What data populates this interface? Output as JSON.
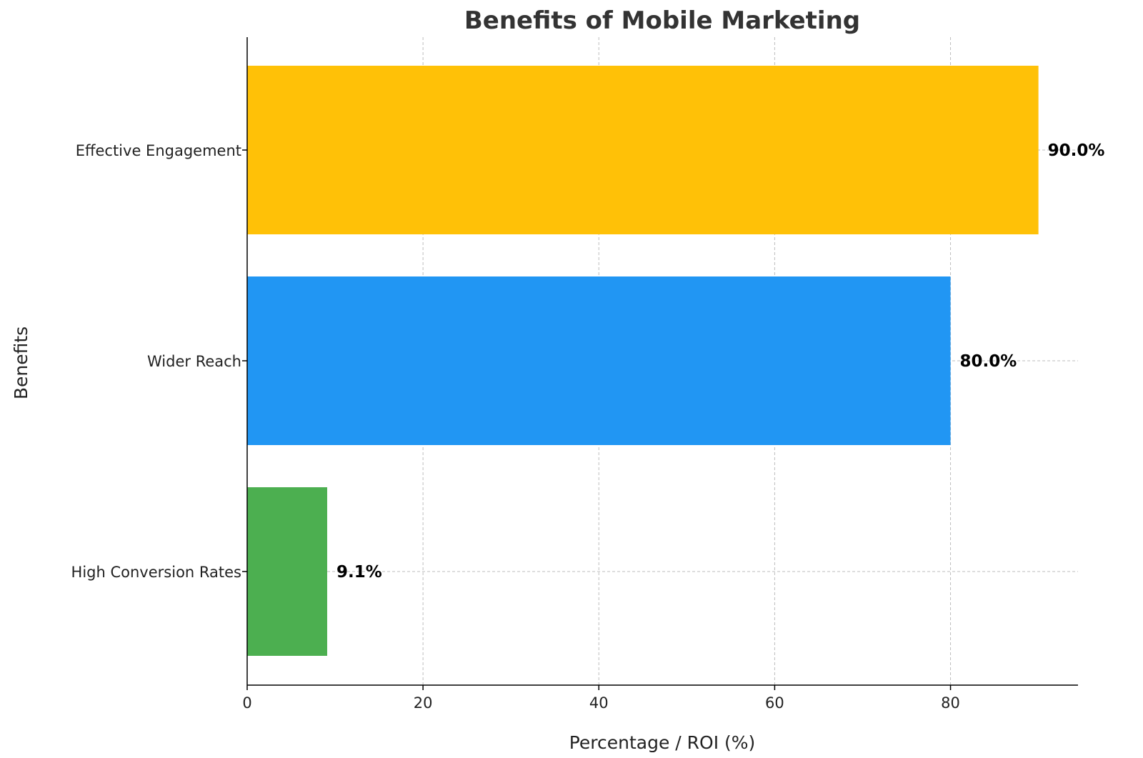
{
  "chart_data": {
    "type": "bar",
    "orientation": "horizontal",
    "title": "Benefits of Mobile Marketing",
    "xlabel": "Percentage / ROI (%)",
    "ylabel": "Benefits",
    "categories": [
      "High Conversion Rates",
      "Wider Reach",
      "Effective Engagement"
    ],
    "values": [
      9.1,
      80.0,
      90.0
    ],
    "value_labels": [
      "9.1%",
      "80.0%",
      "90.0%"
    ],
    "colors": [
      "#4caf50",
      "#2196f3",
      "#ffc107"
    ],
    "xlim": [
      0,
      94.5
    ],
    "xticks": [
      0,
      20,
      40,
      60,
      80
    ],
    "grid": true
  }
}
